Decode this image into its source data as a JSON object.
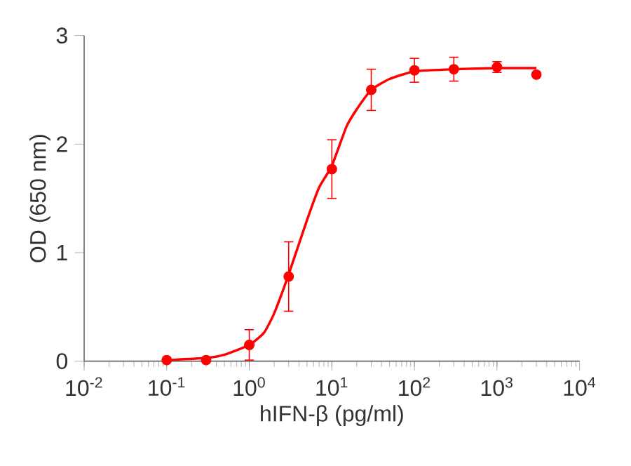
{
  "chart_data": {
    "type": "scatter",
    "xlabel": "hIFN-β (pg/ml)",
    "ylabel": "OD (650 nm)",
    "log": "x",
    "grid": false,
    "xlim": [
      0.01,
      10000
    ],
    "ylim": [
      0,
      3
    ],
    "xticks": [
      {
        "value": 0.01,
        "label": "10$^{-2}$"
      },
      {
        "value": 0.1,
        "label": "10$^{-1}$"
      },
      {
        "value": 1,
        "label": "10$^{0}$"
      },
      {
        "value": 10,
        "label": "10$^{1}$"
      },
      {
        "value": 100,
        "label": "10$^{2}$"
      },
      {
        "value": 1000,
        "label": "10$^{3}$"
      },
      {
        "value": 10000,
        "label": "10$^{4}$"
      }
    ],
    "yticks": [
      0,
      1,
      2,
      3
    ],
    "series": [
      {
        "color": "#ff0000",
        "marker": "circle",
        "x": [
          0.1,
          0.3,
          1,
          3,
          10,
          30,
          100,
          300,
          1000,
          3000
        ],
        "values": [
          0.01,
          0.01,
          0.15,
          0.78,
          1.77,
          2.5,
          2.68,
          2.69,
          2.71,
          2.64
        ],
        "errors": [
          null,
          null,
          0.14,
          0.32,
          0.27,
          0.19,
          0.11,
          0.11,
          0.05,
          null
        ]
      },
      {
        "type": "line",
        "color": "#ff0000",
        "marker": "none",
        "x": [
          0.1,
          0.3,
          0.5,
          1,
          1.5,
          2,
          3,
          5,
          7,
          10,
          15,
          20,
          30,
          50,
          100,
          300,
          1000,
          3000
        ],
        "values": [
          0.01,
          0.03,
          0.06,
          0.15,
          0.26,
          0.44,
          0.8,
          1.3,
          1.6,
          1.8,
          2.16,
          2.32,
          2.5,
          2.6,
          2.67,
          2.69,
          2.7,
          2.7
        ]
      }
    ]
  }
}
